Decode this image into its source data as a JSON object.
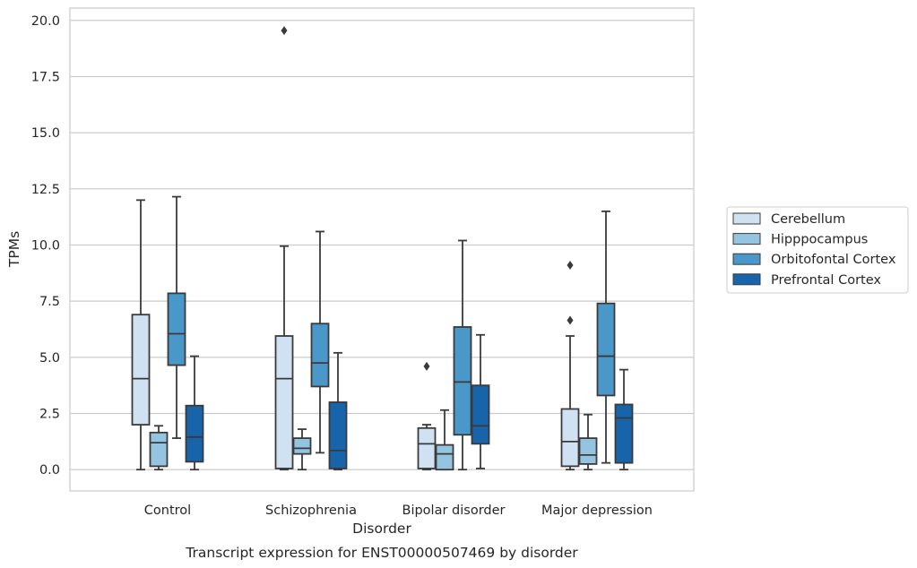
{
  "chart_data": {
    "type": "box",
    "categories": [
      "Control",
      "Schizophrenia",
      "Bipolar disorder",
      "Major depression"
    ],
    "xlabel": "Disorder",
    "ylabel": "TPMs",
    "caption": "Transcript expression for ENST00000507469 by disorder",
    "ylim": [
      -0.95,
      20.55
    ],
    "yticks": [
      "0.0",
      "2.5",
      "5.0",
      "7.5",
      "10.0",
      "12.5",
      "15.0",
      "17.5",
      "20.0"
    ],
    "ytick_values": [
      0,
      2.5,
      5,
      7.5,
      10,
      12.5,
      15,
      17.5,
      20
    ],
    "grid": true,
    "legend_position": "right",
    "series": [
      {
        "name": "Cerebellum",
        "color": "#d0e1f2",
        "boxes": [
          {
            "whisker_low": 0.0,
            "q1": 2.0,
            "median": 4.05,
            "q3": 6.9,
            "whisker_high": 12.0,
            "outliers": []
          },
          {
            "whisker_low": 0.0,
            "q1": 0.05,
            "median": 4.05,
            "q3": 5.95,
            "whisker_high": 9.95,
            "outliers": [
              19.55
            ]
          },
          {
            "whisker_low": 0.0,
            "q1": 0.05,
            "median": 1.15,
            "q3": 1.85,
            "whisker_high": 2.0,
            "outliers": [
              4.6
            ]
          },
          {
            "whisker_low": 0.0,
            "q1": 0.15,
            "median": 1.25,
            "q3": 2.7,
            "whisker_high": 5.95,
            "outliers": [
              6.65,
              9.1
            ]
          }
        ]
      },
      {
        "name": "Hipppocampus",
        "color": "#94c4df",
        "boxes": [
          {
            "whisker_low": 0.0,
            "q1": 0.15,
            "median": 1.2,
            "q3": 1.65,
            "whisker_high": 1.95,
            "outliers": []
          },
          {
            "whisker_low": 0.0,
            "q1": 0.7,
            "median": 0.95,
            "q3": 1.4,
            "whisker_high": 1.8,
            "outliers": []
          },
          {
            "whisker_low": 0.0,
            "q1": 0.0,
            "median": 0.7,
            "q3": 1.1,
            "whisker_high": 2.65,
            "outliers": []
          },
          {
            "whisker_low": 0.0,
            "q1": 0.25,
            "median": 0.65,
            "q3": 1.4,
            "whisker_high": 2.45,
            "outliers": []
          }
        ]
      },
      {
        "name": "Orbitofontal Cortex",
        "color": "#4a98c9",
        "boxes": [
          {
            "whisker_low": 1.4,
            "q1": 4.65,
            "median": 6.05,
            "q3": 7.85,
            "whisker_high": 12.15,
            "outliers": []
          },
          {
            "whisker_low": 0.75,
            "q1": 3.7,
            "median": 4.75,
            "q3": 6.5,
            "whisker_high": 10.6,
            "outliers": []
          },
          {
            "whisker_low": 0.0,
            "q1": 1.55,
            "median": 3.9,
            "q3": 6.35,
            "whisker_high": 10.2,
            "outliers": []
          },
          {
            "whisker_low": 0.3,
            "q1": 3.3,
            "median": 5.05,
            "q3": 7.4,
            "whisker_high": 11.5,
            "outliers": []
          }
        ]
      },
      {
        "name": "Prefrontal Cortex",
        "color": "#1764ab",
        "boxes": [
          {
            "whisker_low": 0.0,
            "q1": 0.35,
            "median": 1.45,
            "q3": 2.85,
            "whisker_high": 5.05,
            "outliers": []
          },
          {
            "whisker_low": 0.0,
            "q1": 0.05,
            "median": 0.85,
            "q3": 3.0,
            "whisker_high": 5.2,
            "outliers": []
          },
          {
            "whisker_low": 0.05,
            "q1": 1.15,
            "median": 1.95,
            "q3": 3.75,
            "whisker_high": 6.0,
            "outliers": []
          },
          {
            "whisker_low": 0.0,
            "q1": 0.3,
            "median": 2.3,
            "q3": 2.9,
            "whisker_high": 4.45,
            "outliers": []
          }
        ]
      }
    ]
  }
}
